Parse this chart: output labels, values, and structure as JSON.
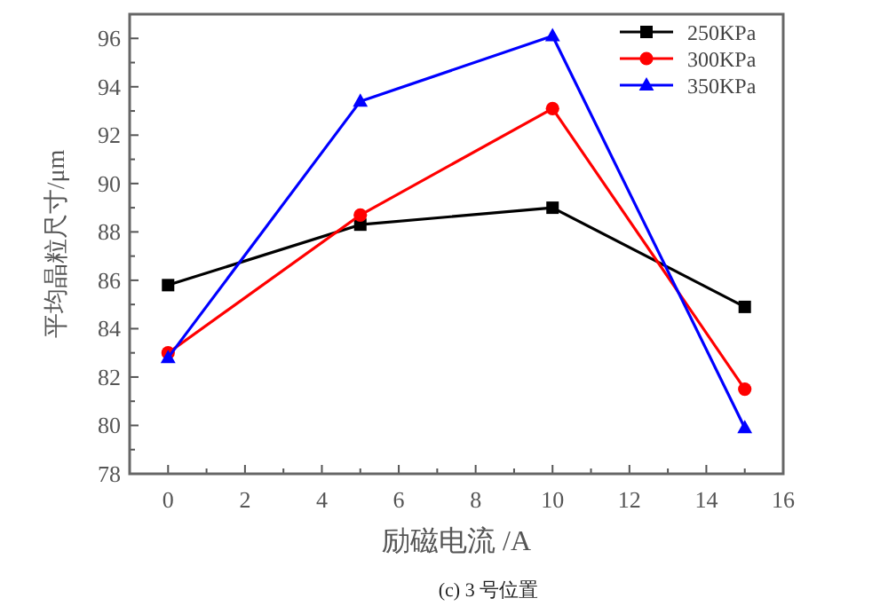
{
  "chart_data": {
    "type": "line",
    "xlabel": "励磁电流 /A",
    "ylabel": "平均晶粒尺寸/μm",
    "annotations": [
      "(c) 3 号位置"
    ],
    "x": [
      0,
      5,
      10,
      15
    ],
    "xlim": [
      -1,
      16
    ],
    "xticks": [
      0,
      {
        "value": 1,
        "label": null
      },
      2,
      {
        "value": 3,
        "label": null
      },
      4,
      {
        "value": 5,
        "label": null
      },
      6,
      {
        "value": 7,
        "label": null
      },
      8,
      {
        "value": 9,
        "label": null
      },
      10,
      {
        "value": 11,
        "label": null
      },
      12,
      {
        "value": 13,
        "label": null
      },
      14,
      {
        "value": 15,
        "label": null
      },
      16
    ],
    "ylim": [
      78,
      97
    ],
    "yticks": [
      78,
      {
        "value": 79,
        "label": null
      },
      80,
      {
        "value": 81,
        "label": null
      },
      82,
      {
        "value": 83,
        "label": null
      },
      84,
      {
        "value": 85,
        "label": null
      },
      86,
      {
        "value": 87,
        "label": null
      },
      88,
      {
        "value": 89,
        "label": null
      },
      90,
      {
        "value": 91,
        "label": null
      },
      92,
      {
        "value": 93,
        "label": null
      },
      94,
      {
        "value": 95,
        "label": null
      },
      96
    ],
    "legend": "top right",
    "grid": false,
    "series": [
      {
        "name": "250KPa",
        "color": "#000000",
        "marker": "square",
        "values": [
          85.8,
          88.3,
          89.0,
          84.9
        ]
      },
      {
        "name": "300KPa",
        "color": "#ff0000",
        "marker": "circle",
        "values": [
          83.0,
          88.7,
          93.1,
          81.5
        ]
      },
      {
        "name": "350KPa",
        "color": "#0000ff",
        "marker": "triangle",
        "values": [
          82.8,
          93.4,
          96.1,
          79.9
        ]
      }
    ]
  }
}
